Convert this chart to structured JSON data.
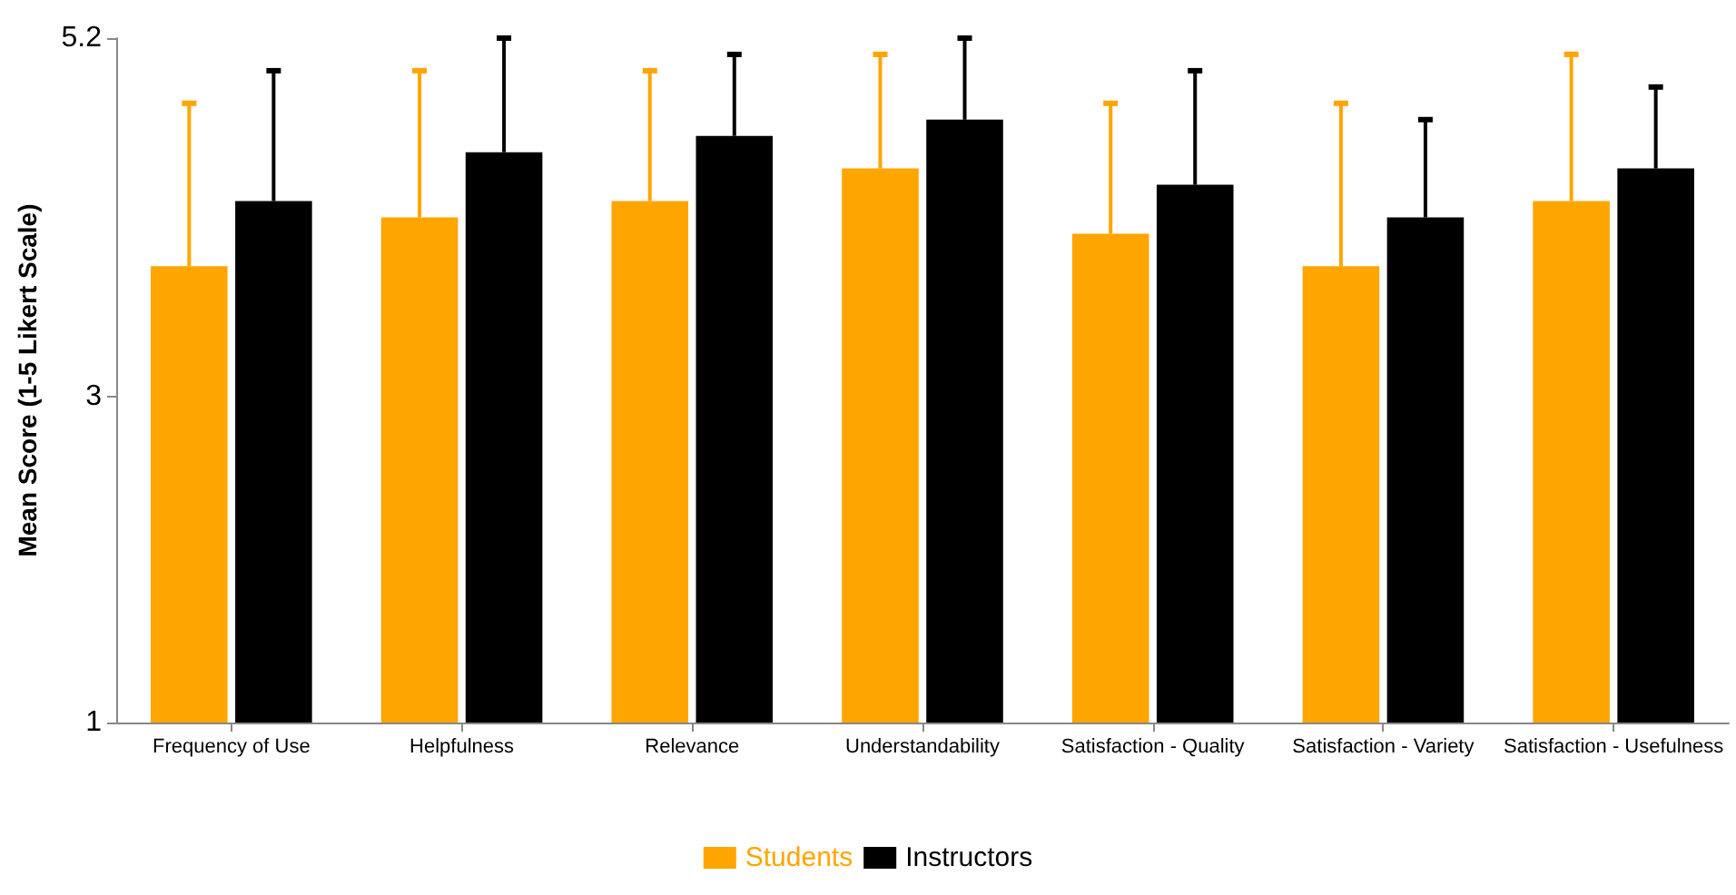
{
  "chart_data": {
    "type": "bar",
    "ylabel": "Mean Score (1-5 Likert Scale)",
    "categories": [
      "Frequency of Use",
      "Helpfulness",
      "Relevance",
      "Understandability",
      "Satisfaction - Quality",
      "Satisfaction - Variety",
      "Satisfaction - Usefulness"
    ],
    "series": [
      {
        "name": "Students",
        "color": "#ffa500",
        "values": [
          3.8,
          4.1,
          4.2,
          4.4,
          4.0,
          3.8,
          4.2
        ],
        "errors": [
          [
            3.8,
            4.8
          ],
          [
            4.1,
            5.0
          ],
          [
            4.2,
            5.0
          ],
          [
            4.4,
            5.1
          ],
          [
            4.0,
            4.8
          ],
          [
            3.8,
            4.8
          ],
          [
            4.2,
            5.1
          ]
        ]
      },
      {
        "name": "Instructors",
        "color": "#000000",
        "values": [
          4.2,
          4.5,
          4.6,
          4.7,
          4.3,
          4.1,
          4.4
        ],
        "errors": [
          [
            4.2,
            5.0
          ],
          [
            4.5,
            5.2
          ],
          [
            4.6,
            5.1
          ],
          [
            4.7,
            5.2
          ],
          [
            4.3,
            5.0
          ],
          [
            4.1,
            4.7
          ],
          [
            4.4,
            4.9
          ]
        ]
      }
    ],
    "ylim": [
      1,
      5.2
    ],
    "yticks": [
      1,
      3,
      5.2
    ],
    "grid": false,
    "legend": "bottom"
  }
}
